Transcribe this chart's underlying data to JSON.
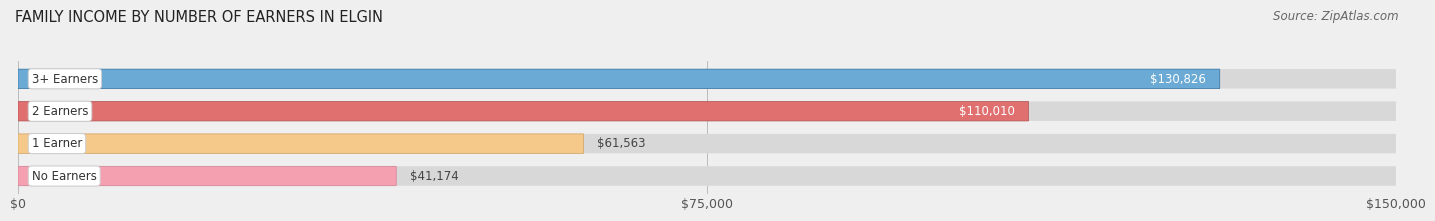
{
  "title": "FAMILY INCOME BY NUMBER OF EARNERS IN ELGIN",
  "source": "Source: ZipAtlas.com",
  "categories": [
    "No Earners",
    "1 Earner",
    "2 Earners",
    "3+ Earners"
  ],
  "values": [
    41174,
    61563,
    110010,
    130826
  ],
  "labels": [
    "$41,174",
    "$61,563",
    "$110,010",
    "$130,826"
  ],
  "bar_colors": [
    "#f4a0b0",
    "#f5c98a",
    "#e07070",
    "#6aaad4"
  ],
  "bar_edge_colors": [
    "#d4809a",
    "#d0a060",
    "#b05050",
    "#3070a0"
  ],
  "background_color": "#efefef",
  "xmax": 150000,
  "xticks": [
    0,
    75000,
    150000
  ],
  "xticklabels": [
    "$0",
    "$75,000",
    "$150,000"
  ],
  "label_inside_threshold": 90000,
  "title_fontsize": 10.5,
  "source_fontsize": 8.5,
  "bar_label_fontsize": 8.5,
  "cat_label_fontsize": 8.5,
  "tick_fontsize": 9
}
